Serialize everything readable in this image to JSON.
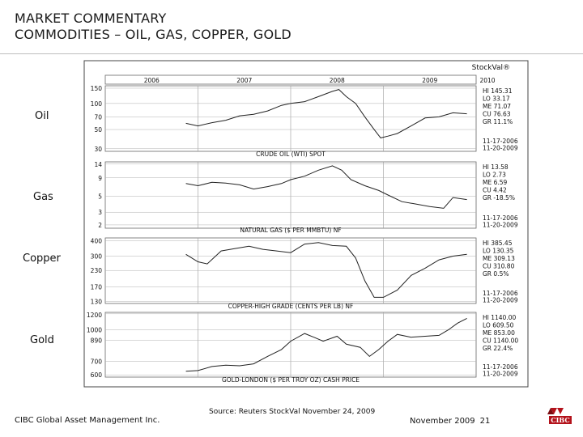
{
  "header": {
    "title_line1": "MARKET COMMENTARY",
    "title_line2": "COMMODITIES – OIL, GAS, COPPER, GOLD"
  },
  "side_labels": {
    "oil": "Oil",
    "gas": "Gas",
    "copper": "Copper",
    "gold": "Gold"
  },
  "chart_brand": "StockVal®",
  "chart_data": {
    "type": "line",
    "years": [
      "2006",
      "2007",
      "2008",
      "2009",
      "2010"
    ],
    "panels": [
      {
        "name": "CRUDE OIL (WTI) SPOT",
        "yticks": [
          "150",
          "100",
          "70",
          "50",
          "30"
        ],
        "scale": "log",
        "ylim": [
          28,
          160
        ],
        "x": [
          2006.87,
          2007.0,
          2007.15,
          2007.3,
          2007.45,
          2007.6,
          2007.75,
          2007.9,
          2008.0,
          2008.15,
          2008.3,
          2008.45,
          2008.52,
          2008.6,
          2008.7,
          2008.8,
          2008.9,
          2008.97,
          2009.05,
          2009.15,
          2009.3,
          2009.45,
          2009.6,
          2009.75,
          2009.9
        ],
        "values": [
          59,
          55,
          60,
          64,
          72,
          75,
          82,
          95,
          100,
          105,
          120,
          138,
          145,
          120,
          100,
          70,
          50,
          40,
          42,
          45,
          55,
          68,
          70,
          78,
          76
        ],
        "stats": [
          "HI  145.31",
          "LO   33.17",
          "ME   71.07",
          "CU   76.63",
          "GR  11.1%"
        ],
        "dates": [
          "11-17-2006",
          "11-20-2009"
        ]
      },
      {
        "name": "NATURAL GAS ($ PER MMBTU) NF",
        "yticks": [
          "14",
          "9",
          "5",
          "3",
          "2"
        ],
        "scale": "log",
        "ylim": [
          1.8,
          15
        ],
        "x": [
          2006.87,
          2007.0,
          2007.15,
          2007.3,
          2007.45,
          2007.6,
          2007.75,
          2007.9,
          2008.0,
          2008.15,
          2008.3,
          2008.45,
          2008.55,
          2008.65,
          2008.8,
          2008.95,
          2009.05,
          2009.2,
          2009.35,
          2009.5,
          2009.65,
          2009.75,
          2009.9
        ],
        "values": [
          7.5,
          7.0,
          7.8,
          7.6,
          7.2,
          6.3,
          6.8,
          7.5,
          8.5,
          9.5,
          11.5,
          13.2,
          11.5,
          8.5,
          7.0,
          6.0,
          5.2,
          4.2,
          3.9,
          3.6,
          3.4,
          4.8,
          4.5
        ],
        "stats": [
          "HI   13.58",
          "LO     2.73",
          "ME     6.59",
          "CU     4.42",
          "GR -18.5%"
        ],
        "dates": [
          "11-17-2006",
          "11-20-2009"
        ]
      },
      {
        "name": "COPPER-HIGH GRADE (CENTS PER LB) NF",
        "yticks": [
          "400",
          "300",
          "230",
          "170",
          "130"
        ],
        "scale": "log",
        "ylim": [
          125,
          420
        ],
        "x": [
          2006.87,
          2007.0,
          2007.1,
          2007.25,
          2007.4,
          2007.55,
          2007.7,
          2007.85,
          2008.0,
          2008.15,
          2008.3,
          2008.45,
          2008.6,
          2008.7,
          2008.8,
          2008.9,
          2009.0,
          2009.15,
          2009.3,
          2009.45,
          2009.6,
          2009.75,
          2009.9
        ],
        "values": [
          310,
          270,
          260,
          330,
          345,
          360,
          340,
          330,
          320,
          375,
          385,
          365,
          360,
          290,
          190,
          140,
          140,
          160,
          210,
          240,
          280,
          300,
          310
        ],
        "stats": [
          "HI   385.45",
          "LO  130.35",
          "ME  309.13",
          "CU  310.80",
          "GR     0.5%"
        ],
        "dates": [
          "11-17-2006",
          "11-20-2009"
        ]
      },
      {
        "name": "GOLD-LONDON ($ PER TROY OZ) CASH PRICE",
        "yticks": [
          "1200",
          "1000",
          "890",
          "700",
          "600"
        ],
        "scale": "log",
        "ylim": [
          585,
          1220
        ],
        "x": [
          2006.87,
          2007.0,
          2007.15,
          2007.3,
          2007.45,
          2007.6,
          2007.75,
          2007.9,
          2008.0,
          2008.15,
          2008.25,
          2008.35,
          2008.5,
          2008.6,
          2008.75,
          2008.85,
          2008.95,
          2009.05,
          2009.15,
          2009.3,
          2009.45,
          2009.6,
          2009.7,
          2009.8,
          2009.9
        ],
        "values": [
          625,
          630,
          660,
          670,
          665,
          680,
          740,
          800,
          880,
          960,
          920,
          880,
          930,
          850,
          820,
          740,
          800,
          880,
          950,
          920,
          930,
          940,
          1000,
          1080,
          1140
        ],
        "stats": [
          "HI  1140.00",
          "LO    609.50",
          "ME    853.00",
          "CU  1140.00",
          "GR    22.4%"
        ],
        "dates": [
          "11-17-2006",
          "11-20-2009"
        ]
      }
    ]
  },
  "footer": {
    "firm": "CIBC Global Asset Management Inc.",
    "source": "Source: Reuters StockVal November 24, 2009",
    "date": "November 2009",
    "page": "21",
    "logo_text": "CIBC"
  }
}
